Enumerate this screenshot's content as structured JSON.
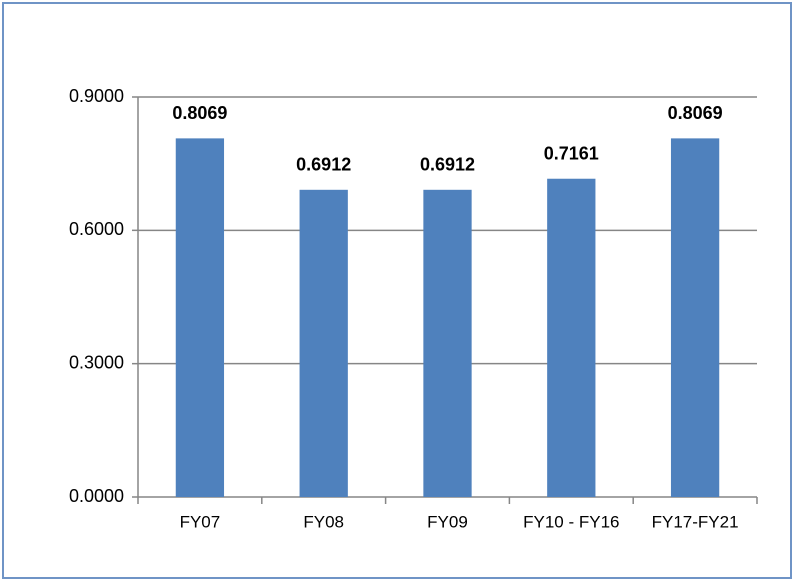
{
  "chart_data": {
    "type": "bar",
    "categories": [
      "FY07",
      "FY08",
      "FY09",
      "FY10 - FY16",
      "FY17-FY21"
    ],
    "values": [
      0.8069,
      0.6912,
      0.6912,
      0.7161,
      0.8069
    ],
    "color": "#4f81bd",
    "ylim": [
      0,
      0.9
    ],
    "yticks": [
      {
        "value": 0,
        "label": "0.0000"
      },
      {
        "value": 0.3,
        "label": "0.3000"
      },
      {
        "value": 0.6,
        "label": "0.6000"
      },
      {
        "value": 0.9,
        "label": "0.9000"
      }
    ],
    "grid": true
  }
}
